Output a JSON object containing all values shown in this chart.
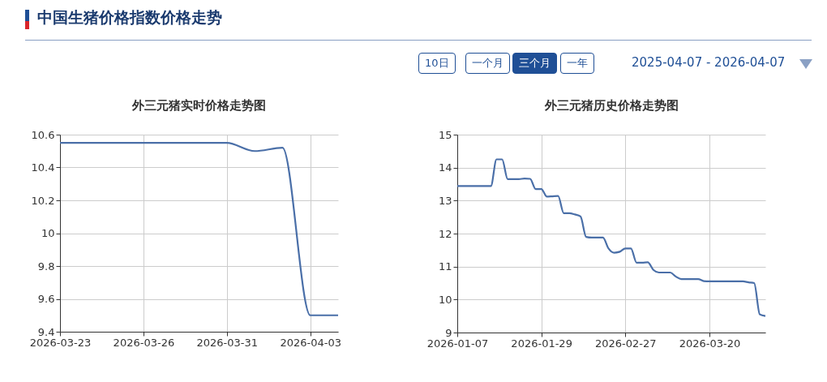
{
  "chart_data": [
    {
      "type": "other",
      "title": "中国生猪价格指数价格走势",
      "annotations": [
        "10日",
        "一个月",
        "三个月",
        "一年",
        "2025-04-07 - 2026-04-07"
      ]
    },
    {
      "type": "line",
      "title": "外三元猪实时价格走势图",
      "categories": [
        "2026-03-23",
        null,
        null,
        "2026-03-26",
        null,
        null,
        "2026-03-31",
        null,
        null,
        "2026-04-03",
        null
      ],
      "series": [
        {
          "color": "#4a6fa8",
          "values": [
            10.55,
            10.55,
            10.55,
            10.55,
            10.55,
            10.55,
            10.55,
            10.5,
            10.52,
            9.5,
            9.5
          ]
        }
      ],
      "ylim": [
        9.4,
        10.6
      ],
      "yticks": [
        9.4,
        9.6,
        9.8,
        {
          "value": 10,
          "label": "10"
        },
        10.2,
        10.4,
        10.6
      ],
      "grid": true
    },
    {
      "type": "line",
      "title": "外三元猪历史价格走势图",
      "categories": [
        "2026-01-07",
        null,
        null,
        null,
        null,
        null,
        null,
        null,
        null,
        null,
        null,
        null,
        null,
        null,
        null,
        "2026-01-29",
        null,
        null,
        null,
        null,
        null,
        null,
        null,
        null,
        null,
        null,
        null,
        null,
        null,
        null,
        "2026-02-27",
        null,
        null,
        null,
        null,
        null,
        null,
        null,
        null,
        null,
        null,
        null,
        null,
        null,
        null,
        "2026-03-20",
        null,
        null,
        null,
        null,
        null,
        null,
        null,
        null,
        null,
        null
      ],
      "series": [
        {
          "color": "#4a6fa8",
          "values": [
            13.44,
            13.44,
            13.44,
            13.44,
            13.44,
            13.44,
            13.44,
            14.25,
            14.25,
            13.65,
            13.65,
            13.65,
            13.67,
            13.66,
            13.35,
            13.35,
            13.12,
            13.13,
            13.14,
            12.62,
            12.62,
            12.58,
            12.52,
            11.9,
            11.88,
            11.88,
            11.88,
            11.55,
            11.42,
            11.45,
            11.55,
            11.55,
            11.12,
            11.12,
            11.13,
            10.9,
            10.82,
            10.82,
            10.82,
            10.7,
            10.62,
            10.62,
            10.62,
            10.62,
            10.56,
            10.55,
            10.55,
            10.55,
            10.55,
            10.55,
            10.55,
            10.55,
            10.52,
            10.5,
            9.55,
            9.5
          ]
        }
      ],
      "ylim": [
        9,
        15
      ],
      "yticks": [
        9,
        10,
        11,
        12,
        13,
        14,
        15
      ],
      "grid": true
    }
  ]
}
